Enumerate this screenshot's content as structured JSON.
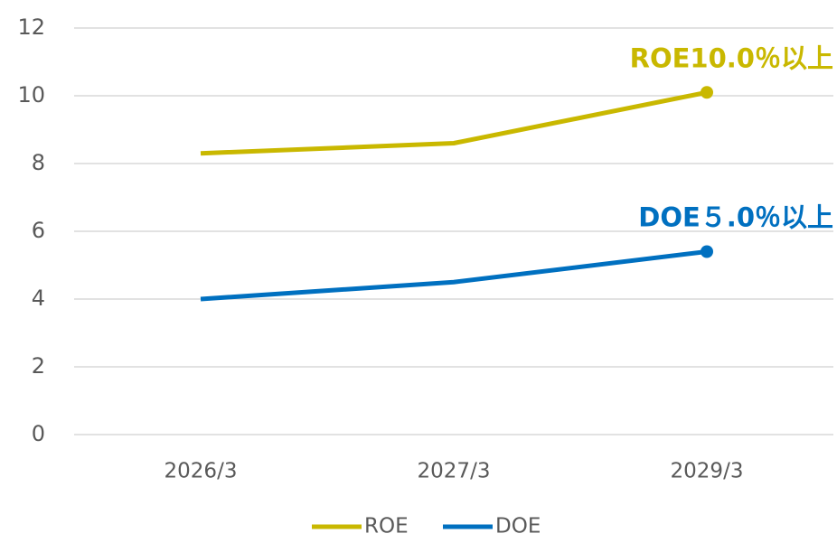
{
  "chart_data": {
    "type": "line",
    "categories": [
      "2026/3",
      "2027/3",
      "2029/3"
    ],
    "series": [
      {
        "name": "ROE",
        "color": "#c9b800",
        "values": [
          8.3,
          8.6,
          10.1
        ]
      },
      {
        "name": "DOE",
        "color": "#0070c0",
        "values": [
          4.0,
          4.5,
          5.4
        ]
      }
    ],
    "annotations": [
      "ROE10.0％以上",
      "DOE５.0％以上"
    ],
    "ylim": [
      0,
      12
    ],
    "yticks": [
      0,
      2,
      4,
      6,
      8,
      10,
      12
    ],
    "grid": true,
    "legend": "bottom"
  }
}
